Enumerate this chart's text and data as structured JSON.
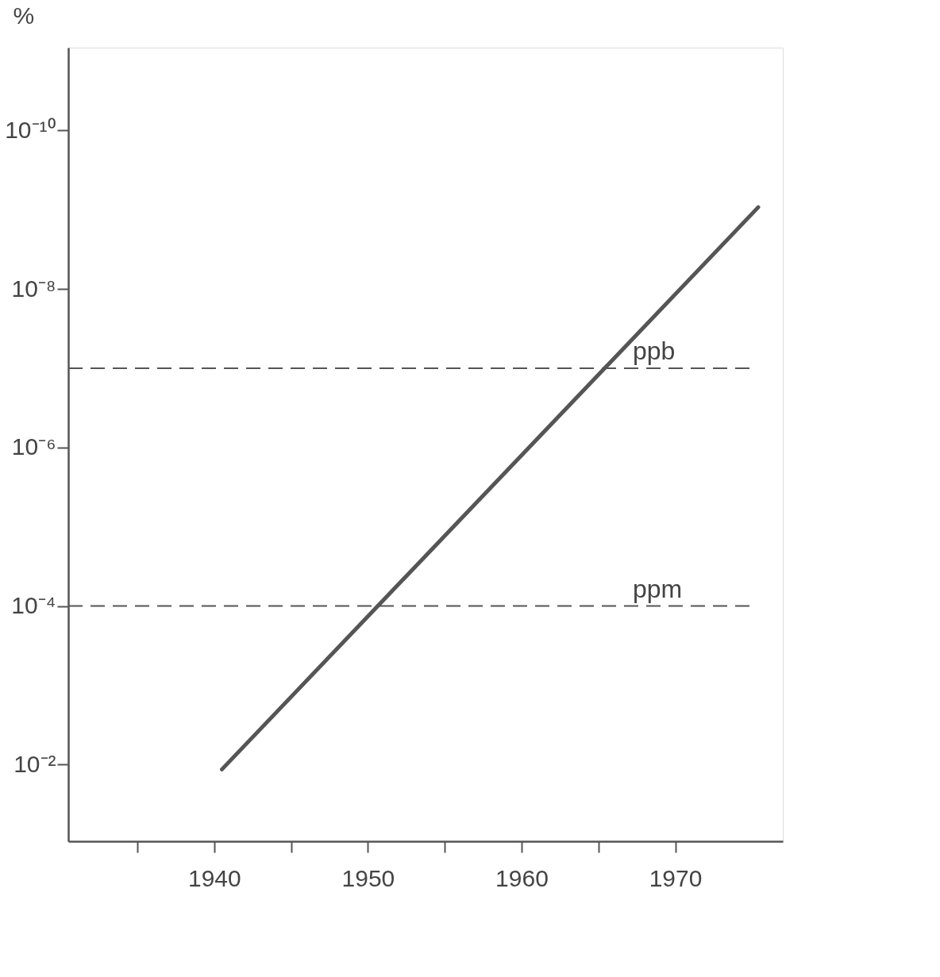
{
  "chart_data": {
    "type": "line",
    "ylabel": "%",
    "log": "y",
    "grid": false,
    "line_style": "solid",
    "marker": "none",
    "xlim": [
      1930.5,
      1977
    ],
    "ylim": [
      0.093,
      9e-12
    ],
    "xticks": [
      {
        "value": 1935,
        "label": null
      },
      1940,
      {
        "value": 1945,
        "label": null
      },
      1950,
      {
        "value": 1955,
        "label": null
      },
      1960,
      {
        "value": 1965,
        "label": null
      },
      1970
    ],
    "yticks": [
      {
        "value": 0.01,
        "label": "10⁻²"
      },
      {
        "value": 0.0001,
        "label": "10⁻⁴"
      },
      {
        "value": 1e-06,
        "label": "10⁻⁶"
      },
      {
        "value": 1e-08,
        "label": "10⁻⁸"
      },
      {
        "value": 1e-10,
        "label": "10⁻¹⁰"
      }
    ],
    "series": [
      {
        "color": "#555555",
        "x": [
          1940.5,
          1975.4
        ],
        "values": [
          0.0115,
          9.3e-10
        ]
      }
    ],
    "ref_lines": [
      {
        "axis": "y",
        "value": 1e-07,
        "label": "ppb",
        "line_style": "dashed",
        "color": "#555555"
      },
      {
        "axis": "y",
        "value": 0.0001,
        "label": "ppm",
        "line_style": "dashed",
        "color": "#555555"
      }
    ]
  }
}
